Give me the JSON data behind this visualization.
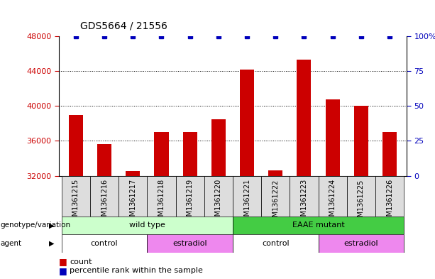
{
  "title": "GDS5664 / 21556",
  "samples": [
    "GSM1361215",
    "GSM1361216",
    "GSM1361217",
    "GSM1361218",
    "GSM1361219",
    "GSM1361220",
    "GSM1361221",
    "GSM1361222",
    "GSM1361223",
    "GSM1361224",
    "GSM1361225",
    "GSM1361226"
  ],
  "counts": [
    39000,
    35600,
    32500,
    37000,
    37000,
    38500,
    44200,
    32600,
    45300,
    40800,
    40000,
    37000
  ],
  "percentiles": [
    100,
    100,
    100,
    100,
    100,
    100,
    100,
    100,
    100,
    100,
    100,
    100
  ],
  "ylim_left": [
    32000,
    48000
  ],
  "ylim_right": [
    0,
    100
  ],
  "yticks_left": [
    32000,
    36000,
    40000,
    44000,
    48000
  ],
  "yticks_right": [
    0,
    25,
    50,
    75,
    100
  ],
  "ytick_right_labels": [
    "0",
    "25",
    "50",
    "75",
    "100%"
  ],
  "bar_color": "#cc0000",
  "dot_color": "#0000bb",
  "bar_width": 0.5,
  "grid_linestyle": ":",
  "grid_linewidth": 0.7,
  "genotype_groups": [
    {
      "label": "wild type",
      "start": 0,
      "end": 5,
      "color": "#ccffcc"
    },
    {
      "label": "EAAE mutant",
      "start": 6,
      "end": 11,
      "color": "#44cc44"
    }
  ],
  "agent_groups": [
    {
      "label": "control",
      "start": 0,
      "end": 2,
      "color": "#ffffff"
    },
    {
      "label": "estradiol",
      "start": 3,
      "end": 5,
      "color": "#ee88ee"
    },
    {
      "label": "control",
      "start": 6,
      "end": 8,
      "color": "#ffffff"
    },
    {
      "label": "estradiol",
      "start": 9,
      "end": 11,
      "color": "#ee88ee"
    }
  ],
  "xtick_bg_color": "#dddddd",
  "legend_count_color": "#cc0000",
  "legend_dot_color": "#0000bb",
  "ylabel_left_color": "#cc0000",
  "ylabel_right_color": "#0000bb",
  "background_color": "#ffffff",
  "plot_bg_color": "#ffffff",
  "title_fontsize": 10,
  "tick_fontsize": 8,
  "xtick_fontsize": 7,
  "annot_fontsize": 8,
  "legend_fontsize": 8
}
